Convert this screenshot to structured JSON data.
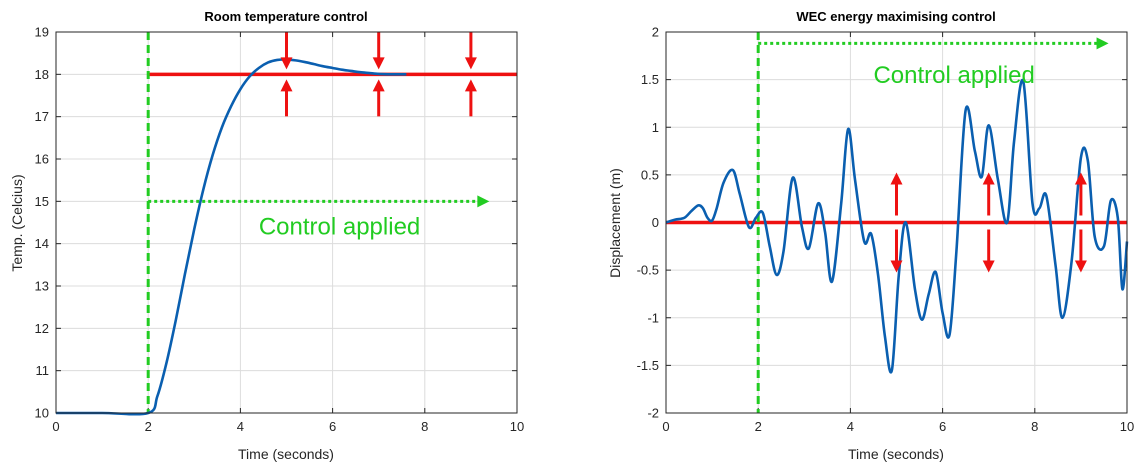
{
  "chart_data": [
    {
      "type": "line",
      "title": "Room temperature control",
      "xlabel": "Time (seconds)",
      "ylabel": "Temp. (Celcius)",
      "xlim": [
        0,
        10
      ],
      "ylim": [
        10,
        19
      ],
      "xticks": [
        0,
        2,
        4,
        6,
        8,
        10
      ],
      "yticks": [
        10,
        11,
        12,
        13,
        14,
        15,
        16,
        17,
        18,
        19
      ],
      "grid": true,
      "legend": "none",
      "series": [
        {
          "x": [
            0,
            1,
            2,
            2.2,
            2.4,
            2.6,
            2.8,
            3.0,
            3.2,
            3.4,
            3.6,
            3.8,
            4.0,
            4.2,
            4.4,
            4.6,
            4.8,
            5.0,
            5.2,
            5.4,
            5.6,
            5.8,
            6.0,
            6.2,
            6.4,
            6.6,
            6.8,
            7.0,
            7.2,
            7.4,
            7.6
          ],
          "y": [
            10,
            10,
            10,
            10.4,
            11.2,
            12.2,
            13.3,
            14.35,
            15.3,
            16.1,
            16.75,
            17.25,
            17.65,
            17.95,
            18.15,
            18.28,
            18.34,
            18.35,
            18.33,
            18.29,
            18.24,
            18.19,
            18.15,
            18.11,
            18.08,
            18.05,
            18.03,
            18.01,
            18.0,
            18.0,
            18.0
          ],
          "color": "#0a5fb0"
        }
      ],
      "reference": {
        "y": 18,
        "color": "#ee1111"
      },
      "control_start": {
        "x": 2,
        "color": "#22cc22"
      },
      "arrow_x": [
        5,
        7,
        9
      ],
      "arrows_direction": "toward-reference",
      "arrow_color": "#ee1111",
      "annotation": {
        "text": "Control applied",
        "color": "#22cc22",
        "x": 4.4,
        "y": 14.4
      },
      "control_arrow": {
        "x_from": 2,
        "x_to": 9.4,
        "y": 15
      }
    },
    {
      "type": "line",
      "title": "WEC energy maximising control",
      "xlabel": "Time (seconds)",
      "ylabel": "Displacement (m)",
      "xlim": [
        0,
        10
      ],
      "ylim": [
        -2,
        2
      ],
      "xticks": [
        0,
        2,
        4,
        6,
        8,
        10
      ],
      "yticks": [
        -2,
        -1.5,
        -1,
        -0.5,
        0,
        0.5,
        1,
        1.5,
        2
      ],
      "grid": true,
      "legend": "none",
      "series": [
        {
          "x": [
            0,
            0.2,
            0.4,
            0.55,
            0.7,
            0.8,
            0.9,
            1.0,
            1.1,
            1.25,
            1.45,
            1.6,
            1.8,
            1.95,
            2.1,
            2.25,
            2.4,
            2.55,
            2.75,
            2.95,
            3.1,
            3.3,
            3.45,
            3.6,
            3.8,
            3.95,
            4.1,
            4.3,
            4.45,
            4.6,
            4.75,
            4.9,
            5.05,
            5.2,
            5.4,
            5.55,
            5.7,
            5.85,
            6.0,
            6.15,
            6.3,
            6.5,
            6.7,
            6.85,
            7.0,
            7.2,
            7.4,
            7.55,
            7.75,
            7.95,
            8.1,
            8.25,
            8.45,
            8.6,
            8.8,
            9.0,
            9.15,
            9.3,
            9.5,
            9.65,
            9.8,
            9.9,
            10.0
          ],
          "y": [
            0,
            0.03,
            0.05,
            0.12,
            0.18,
            0.15,
            0.05,
            0.02,
            0.15,
            0.42,
            0.55,
            0.3,
            -0.05,
            0.05,
            0.1,
            -0.25,
            -0.55,
            -0.3,
            0.47,
            -0.05,
            -0.27,
            0.2,
            -0.1,
            -0.62,
            0.2,
            0.98,
            0.45,
            -0.2,
            -0.12,
            -0.55,
            -1.2,
            -1.55,
            -0.55,
            0.0,
            -0.7,
            -1.02,
            -0.75,
            -0.52,
            -0.95,
            -1.18,
            -0.3,
            1.18,
            0.75,
            0.48,
            1.02,
            0.45,
            0.0,
            0.85,
            1.48,
            0.2,
            0.15,
            0.28,
            -0.45,
            -1.0,
            -0.4,
            0.68,
            0.65,
            -0.15,
            -0.25,
            0.23,
            0.05,
            -0.7,
            -0.2
          ],
          "color": "#0a5fb0"
        }
      ],
      "reference": {
        "y": 0,
        "color": "#ee1111"
      },
      "control_start": {
        "x": 2,
        "color": "#22cc22"
      },
      "arrow_x": [
        5,
        7,
        9
      ],
      "arrows_direction": "away-from-reference",
      "arrow_color": "#ee1111",
      "annotation": {
        "text": "Control applied",
        "color": "#22cc22",
        "x": 4.5,
        "y": 1.55
      },
      "control_arrow": {
        "x_from": 2,
        "x_to": 9.6,
        "y": 1.88
      }
    }
  ]
}
